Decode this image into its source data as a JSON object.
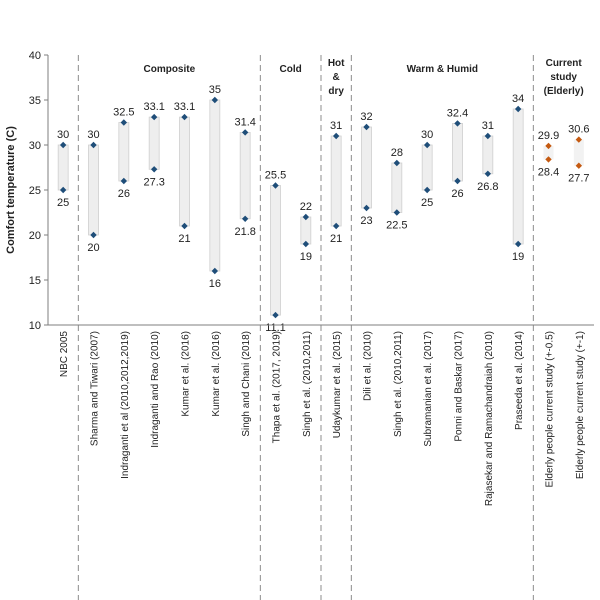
{
  "chart_data": {
    "type": "range",
    "ylabel": "Comfort temperature (C)",
    "ylim": [
      10,
      40
    ],
    "yticks": [
      10,
      15,
      20,
      25,
      30,
      35,
      40
    ],
    "grid": false,
    "categories": [
      "NBC 2005",
      "Sharma and Tiwari (2007)",
      "Indraganti et al (2010,2012,2019)",
      "Indraganti and Rao (2010)",
      "Kumar et al. (2016)",
      "Kumar et al. (2016)",
      "Singh and Chani (2018)",
      "Thapa et al. (2017, 2019)",
      "Singh et al. (2010,2011)",
      "Udaykumar et al. (2015)",
      "Dili et al. (2010)",
      "Singh et al. (2010,2011)",
      "Subramanian et al. (2017)",
      "Ponni and Baskar (2017)",
      "Rajasekar and Ramachandraiah (2010)",
      "Praseeda et al. (2014)",
      "Elderly people current study (+-0.5)",
      "Elderly people current study (+-1)"
    ],
    "upper": [
      30,
      30,
      32.5,
      33.1,
      33.1,
      35,
      31.4,
      25.5,
      22,
      31,
      32,
      28,
      30,
      32.4,
      31,
      34,
      29.9,
      30.6
    ],
    "lower": [
      25,
      20,
      26,
      27.3,
      21,
      16,
      21.8,
      11.1,
      19,
      21,
      23,
      22.5,
      25,
      26,
      26.8,
      19,
      28.4,
      27.7
    ],
    "upper_labels": [
      "30",
      "30",
      "32.5",
      "33.1",
      "33.1",
      "35",
      "31.4",
      "25.5",
      "22",
      "31",
      "32",
      "28",
      "30",
      "32.4",
      "31",
      "34",
      "29.9",
      "30.6"
    ],
    "lower_labels": [
      "25",
      "20",
      "26",
      "27.3",
      "21",
      "16",
      "21.8",
      "11.1",
      "19",
      "21",
      "23",
      "22.5",
      "25",
      "26",
      "26.8",
      "19",
      "28.4",
      "27.7"
    ],
    "groups": [
      {
        "lines": [
          "Composite"
        ],
        "start": 1,
        "end": 6
      },
      {
        "lines": [
          "Cold"
        ],
        "start": 7,
        "end": 8
      },
      {
        "lines": [
          "Hot",
          "&",
          "dry"
        ],
        "start": 9,
        "end": 9
      },
      {
        "lines": [
          "Warm & Humid"
        ],
        "start": 10,
        "end": 15
      },
      {
        "lines": [
          "Current",
          "study",
          "(Elderly)"
        ],
        "start": 16,
        "end": 17
      }
    ],
    "marker_color": "#1f4e79",
    "study_marker_color": "#c55a11",
    "bar_fill": "#eeeeee",
    "bar_stroke": "#cfcfcf",
    "divider_color": "#8c8c8c"
  }
}
